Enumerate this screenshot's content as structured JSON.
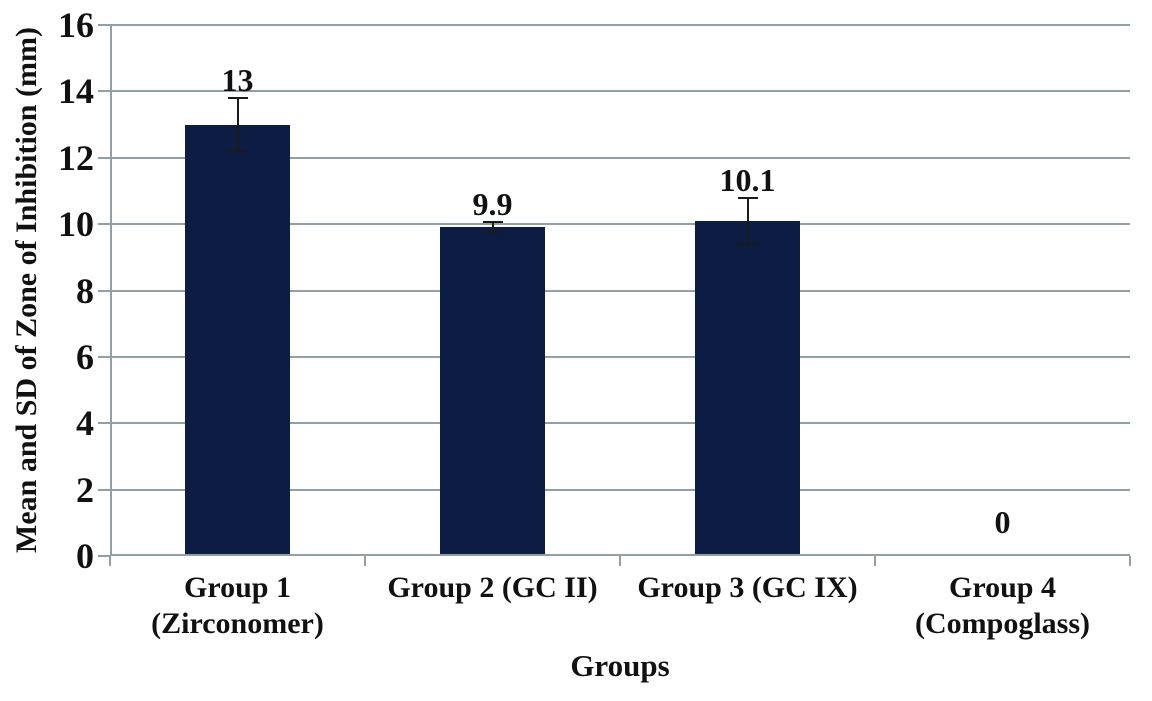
{
  "chart_data": {
    "type": "bar",
    "title": "",
    "xlabel": "Groups",
    "ylabel": "Mean and SD of Zone of Inhibition (mm)",
    "categories": [
      "Group 1 (Zirconomer)",
      "Group 2 (GC II)",
      "Group 3 (GC IX)",
      "Group 4 (Compoglass)"
    ],
    "category_display": [
      "Group 1\n(Zirconomer)",
      "Group 2 (GC II)",
      "Group 3 (GC IX)",
      "Group 4\n(Compoglass)"
    ],
    "values": [
      13,
      9.9,
      10.1,
      0
    ],
    "errors": [
      0.8,
      0.15,
      0.7,
      0
    ],
    "data_labels": [
      "13",
      "9.9",
      "10.1",
      "0"
    ],
    "ylim": [
      0,
      16
    ],
    "yticks": [
      0,
      2,
      4,
      6,
      8,
      10,
      12,
      14,
      16
    ],
    "grid": true,
    "legend": "none",
    "colors": {
      "bar": "#0d1c42",
      "grid": "#90a0a6",
      "axis": "#90a0a6",
      "error_bar": "#1a1a1a",
      "text": "#111111",
      "background": "#ffffff"
    }
  }
}
